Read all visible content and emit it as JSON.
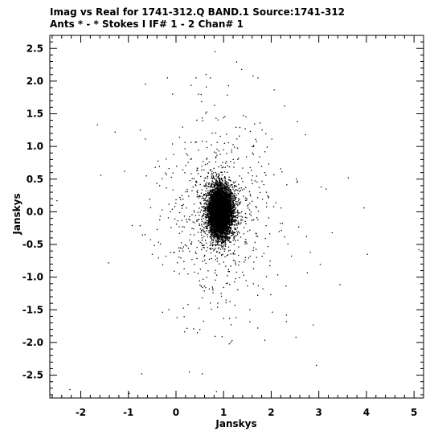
{
  "header": {
    "line1": "Imag vs Real for 1741-312.Q BAND.1   Source:1741-312",
    "line2": "Ants * - *     Stokes I  IF# 1 - 2  Chan# 1"
  },
  "chart_data": {
    "type": "scatter",
    "title": "Imag vs Real for 1741-312.Q BAND.1   Source:1741-312",
    "subtitle": "Ants * - *     Stokes I  IF# 1 - 2  Chan# 1",
    "xlabel": "Janskys",
    "ylabel": "Janskys",
    "xlim": [
      -2.65,
      5.2
    ],
    "ylim": [
      -2.85,
      2.7
    ],
    "xticks": [
      -2,
      -1,
      0,
      1,
      2,
      3,
      4,
      5
    ],
    "xtick_labels": [
      "-2",
      "-1",
      "0",
      "1",
      "2",
      "3",
      "4",
      "5"
    ],
    "yticks": [
      -2.5,
      -2.0,
      -1.5,
      -1.0,
      -0.5,
      0.0,
      0.5,
      1.0,
      1.5,
      2.0,
      2.5
    ],
    "ytick_labels": [
      "-2.5",
      "-2.0",
      "-1.5",
      "-1.0",
      "-0.5",
      "0.0",
      "0.5",
      "1.0",
      "1.5",
      "2.0",
      "2.5"
    ],
    "grid": false,
    "marker_color": "#000000",
    "core_cluster": {
      "center": [
        0.93,
        0.0
      ],
      "std": [
        0.13,
        0.2
      ],
      "count": 6000
    },
    "halo": {
      "center": [
        0.93,
        0.0
      ],
      "std": [
        0.65,
        0.75
      ],
      "count": 700
    },
    "outliers": [
      [
        -2.23,
        -2.72
      ],
      [
        -1.65,
        1.33
      ],
      [
        -1.58,
        0.56
      ],
      [
        -1.28,
        1.22
      ],
      [
        -1.08,
        0.62
      ],
      [
        -0.98,
        -2.78
      ],
      [
        -0.72,
        -2.48
      ],
      [
        -0.75,
        1.25
      ],
      [
        -0.62,
        0.55
      ],
      [
        -0.5,
        -0.65
      ],
      [
        -2.5,
        0.17
      ],
      [
        -1.42,
        -0.78
      ],
      [
        -0.18,
        2.05
      ],
      [
        0.42,
        2.05
      ],
      [
        0.72,
        2.05
      ],
      [
        0.82,
        2.45
      ],
      [
        1.38,
        2.18
      ],
      [
        1.62,
        2.08
      ],
      [
        1.72,
        2.05
      ],
      [
        2.28,
        1.62
      ],
      [
        2.55,
        1.38
      ],
      [
        2.72,
        1.18
      ],
      [
        3.05,
        0.38
      ],
      [
        3.15,
        0.35
      ],
      [
        3.62,
        0.52
      ],
      [
        3.95,
        0.06
      ],
      [
        4.02,
        -0.65
      ],
      [
        5.1,
        -0.58
      ],
      [
        2.95,
        -2.35
      ],
      [
        2.52,
        -1.92
      ],
      [
        1.12,
        -2.02
      ],
      [
        0.85,
        -2.75
      ],
      [
        0.28,
        -2.45
      ],
      [
        0.55,
        -2.48
      ],
      [
        -0.15,
        -1.5
      ],
      [
        0.5,
        -1.8
      ],
      [
        0.45,
        -1.85
      ],
      [
        1.05,
        -1.35
      ],
      [
        0.95,
        -1.25
      ],
      [
        0.25,
        -0.95
      ],
      [
        2.32,
        -1.68
      ],
      [
        2.32,
        -1.58
      ],
      [
        1.55,
        -1.5
      ],
      [
        2.82,
        -0.62
      ],
      [
        3.28,
        -0.32
      ]
    ]
  }
}
